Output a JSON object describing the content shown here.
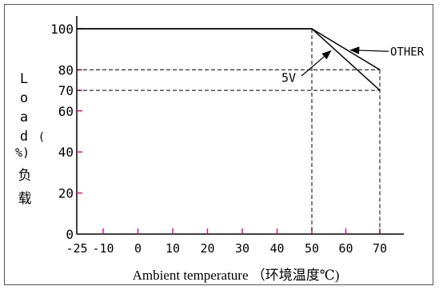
{
  "chart_data": {
    "type": "line",
    "xlabel": "Ambient temperature （环境温度℃)",
    "ylabel_chars": [
      "L",
      "o",
      "a",
      "d",
      "(",
      "%)",
      "负",
      "载"
    ],
    "x_ticks": [
      -25,
      -10,
      0,
      10,
      20,
      30,
      40,
      50,
      60,
      70
    ],
    "x_tick_labels": [
      "-25",
      "-10",
      "0",
      "10",
      "20",
      "30",
      "40",
      "50",
      "60",
      "70"
    ],
    "y_ticks": [
      0,
      20,
      40,
      60,
      70,
      80,
      100
    ],
    "y_tick_labels": [
      "0",
      "20",
      "40",
      "60",
      "70",
      "80",
      "100"
    ],
    "xlim": [
      -25,
      75
    ],
    "ylim": [
      0,
      110
    ],
    "series": [
      {
        "name": "5V",
        "x": [
          -25,
          50,
          70
        ],
        "y": [
          100,
          100,
          70
        ]
      },
      {
        "name": "OTHER",
        "x": [
          -25,
          50,
          70
        ],
        "y": [
          100,
          100,
          80
        ]
      }
    ],
    "reference_lines": [
      {
        "type": "horizontal",
        "y": 80,
        "x_to": 70
      },
      {
        "type": "horizontal",
        "y": 70,
        "x_to": 70
      },
      {
        "type": "vertical",
        "x": 50,
        "y_to": 100
      },
      {
        "type": "vertical",
        "x": 70,
        "y_to": 80
      }
    ],
    "annotations": [
      {
        "text": "OTHER",
        "points_to_series": "OTHER"
      },
      {
        "text": "5V",
        "points_to_series": "5V"
      }
    ],
    "colors": {
      "line": "#000000",
      "tick": "#e0007a",
      "axis": "#000000"
    },
    "grid": false
  }
}
